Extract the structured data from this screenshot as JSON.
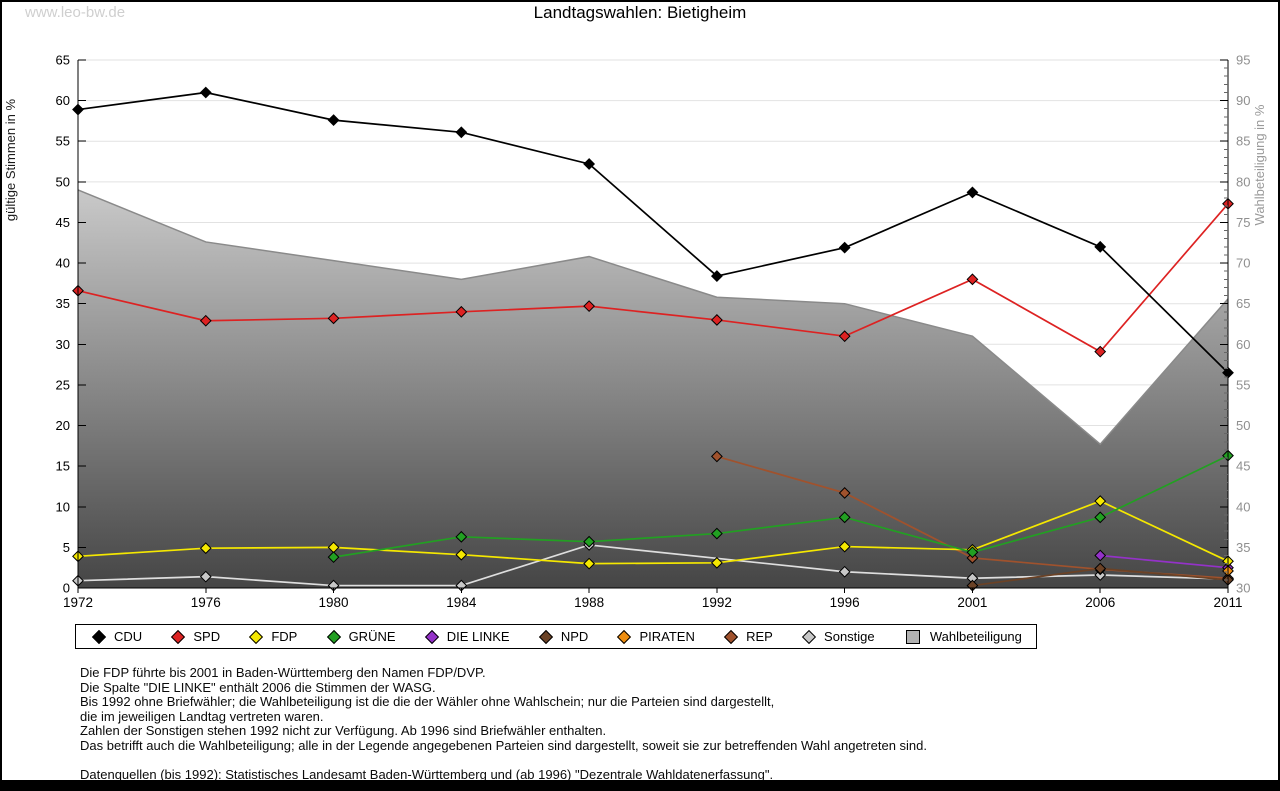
{
  "header": {
    "title": "Landtagswahlen: Bietigheim",
    "watermark": "www.leo-bw.de"
  },
  "chart_data": {
    "type": "line",
    "title": "Landtagswahlen: Bietigheim",
    "categories": [
      "1972",
      "1976",
      "1980",
      "1984",
      "1988",
      "1992",
      "1996",
      "2001",
      "2006",
      "2011"
    ],
    "left_axis": {
      "label": "gültige Stimmen in %",
      "min": 0,
      "max": 65,
      "tick_step": 5,
      "ticks": [
        0,
        5,
        10,
        15,
        20,
        25,
        30,
        35,
        40,
        45,
        50,
        55,
        60,
        65
      ]
    },
    "right_axis": {
      "label": "Wahlbeteiligung in %",
      "min": 30,
      "max": 95,
      "tick_step": 5,
      "minor_tick_step": 1,
      "ticks": [
        30,
        35,
        40,
        45,
        50,
        55,
        60,
        65,
        70,
        75,
        80,
        85,
        90,
        95
      ]
    },
    "grid": "horizontal",
    "legend_position": "bottom",
    "series": [
      {
        "name": "CDU",
        "color": "#000000",
        "axis": "left",
        "marker": "diamond",
        "values": [
          58.9,
          61.0,
          57.6,
          56.1,
          52.2,
          38.4,
          41.9,
          48.7,
          42.0,
          26.5
        ]
      },
      {
        "name": "SPD",
        "color": "#dd2222",
        "axis": "left",
        "marker": "diamond",
        "values": [
          36.6,
          32.9,
          33.2,
          34.0,
          34.7,
          33.0,
          31.0,
          38.0,
          29.1,
          47.3
        ]
      },
      {
        "name": "FDP",
        "color": "#f5e800",
        "axis": "left",
        "marker": "diamond",
        "values": [
          3.9,
          4.9,
          5.0,
          4.1,
          3.0,
          3.1,
          5.1,
          4.7,
          10.7,
          3.3
        ]
      },
      {
        "name": "GRÜNE",
        "color": "#22a022",
        "axis": "left",
        "marker": "diamond",
        "values": [
          null,
          null,
          3.8,
          6.3,
          5.7,
          6.7,
          8.7,
          4.4,
          8.7,
          16.3
        ]
      },
      {
        "name": "DIE LINKE",
        "color": "#9432c8",
        "axis": "left",
        "marker": "diamond",
        "values": [
          null,
          null,
          null,
          null,
          null,
          null,
          null,
          null,
          4.0,
          2.5
        ]
      },
      {
        "name": "NPD",
        "color": "#6b4226",
        "axis": "left",
        "marker": "diamond",
        "values": [
          null,
          null,
          null,
          null,
          null,
          null,
          null,
          0.3,
          2.4,
          1.0
        ]
      },
      {
        "name": "PIRATEN",
        "color": "#ef8e10",
        "axis": "left",
        "marker": "diamond",
        "values": [
          null,
          null,
          null,
          null,
          null,
          null,
          null,
          null,
          null,
          2.1
        ]
      },
      {
        "name": "REP",
        "color": "#a0522d",
        "axis": "left",
        "marker": "diamond",
        "values": [
          null,
          null,
          null,
          null,
          null,
          16.2,
          11.7,
          3.7,
          2.3,
          1.2
        ]
      },
      {
        "name": "Sonstige",
        "color": "#c8c8c8",
        "line_color": "#dedede",
        "axis": "left",
        "marker": "diamond",
        "values": [
          0.9,
          1.4,
          0.3,
          0.3,
          5.3,
          null,
          2.0,
          1.2,
          1.6,
          1.1
        ]
      },
      {
        "name": "Wahlbeteiligung",
        "color": "#b2b2b2",
        "axis": "right",
        "marker": "square",
        "style": "area",
        "values": [
          79.0,
          72.6,
          70.3,
          68.0,
          70.8,
          65.8,
          65.0,
          61.0,
          47.7,
          65.6
        ]
      }
    ]
  },
  "footnotes": [
    "Die FDP führte bis 2001 in Baden-Württemberg den Namen FDP/DVP.",
    "Die Spalte \"DIE LINKE\" enthält 2006 die Stimmen der WASG.",
    "Bis 1992 ohne Briefwähler; die Wahlbeteiligung ist die die der Wähler ohne Wahlschein; nur die Parteien sind dargestellt,",
    "die im jeweiligen Landtag vertreten waren.",
    "Zahlen der Sonstigen stehen 1992 nicht zur Verfügung. Ab 1996 sind Briefwähler enthalten.",
    "Das betrifft auch die Wahlbeteiligung; alle in der Legende angegebenen Parteien sind dargestellt, soweit sie zur betreffenden Wahl angetreten sind.",
    "Datenquellen (bis 1992): Statistisches Landesamt Baden-Württemberg und (ab 1996) \"Dezentrale Wahldatenerfassung\"."
  ]
}
